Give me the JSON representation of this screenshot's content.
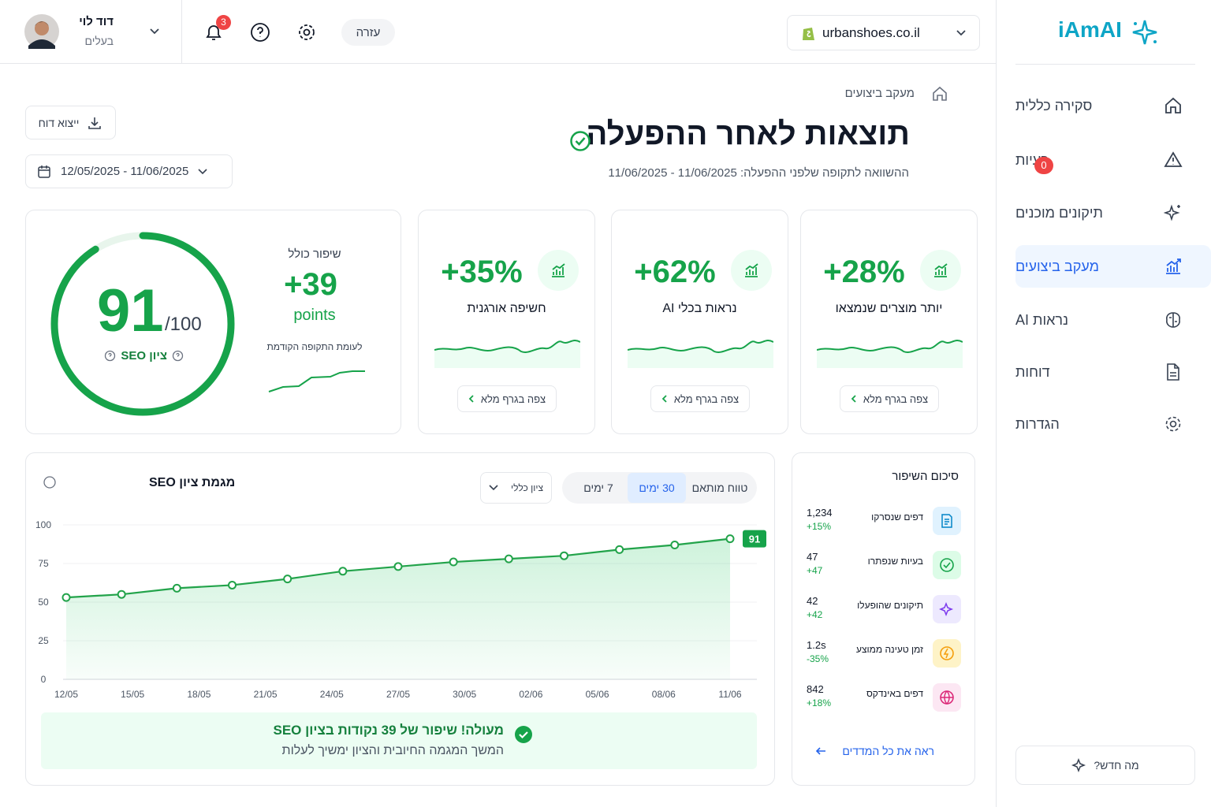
{
  "sidebar": {
    "logo": "iAmAI",
    "nav": [
      "סקירה כללית",
      "בעיות",
      "תיקונים מוכנים",
      "מעקב ביצועים",
      "נראות AI",
      "דוחות",
      "הגדרות"
    ],
    "issues_badge": "0",
    "whats_new": "מה חדש?"
  },
  "topbar": {
    "user_name": "דוד לוי",
    "user_role": "בעלים",
    "notifications": "3",
    "help": "עזרה",
    "store": "urbanshoes.co.il"
  },
  "header": {
    "breadcrumb": "מעקב ביצועים",
    "title": "תוצאות לאחר ההפעלה",
    "subtitle": "ההשוואה לתקופה שלפני ההפעלה: 11/06/2025 - 11/06/2025",
    "export": "ייצוא דוח",
    "date_range": "12/05/2025 - 11/06/2025"
  },
  "score_card": {
    "score": 91,
    "score_max": {
      "value": 100,
      "label": "/100"
    },
    "score_label": "ציון SEO",
    "improvement_label": "שיפור כולל",
    "improvement": "+39",
    "improvement_unit": "points",
    "compare": "לעומת התקופה הקודמת"
  },
  "metric_cards": [
    {
      "value": "+28%",
      "label": "יותר מוצרים שנמצאו",
      "button": "צפה בגרף מלא"
    },
    {
      "value": "+62%",
      "label": "נראות בכלי AI",
      "button": "צפה בגרף מלא"
    },
    {
      "value": "+35%",
      "label": "חשיפה אורגנית",
      "button": "צפה בגרף מלא"
    }
  ],
  "chart_controls": {
    "tabs": [
      "טווח מותאם",
      "30 ימים",
      "7 ימים"
    ],
    "select": "ציון כללי"
  },
  "chart_data": {
    "type": "line",
    "title": "מגמת ציון SEO",
    "x": [
      0,
      2.5,
      5,
      7.5,
      10,
      12.5,
      15,
      17.5,
      20,
      22.5,
      25,
      27.5,
      30
    ],
    "values": [
      53,
      55,
      59,
      61,
      65,
      70,
      73,
      76,
      78,
      80,
      84,
      87,
      91
    ],
    "color": "#22a34a",
    "xlim": [
      0,
      30
    ],
    "xticks": [
      {
        "value": 0,
        "label": "12/05"
      },
      {
        "value": 3,
        "label": "15/05"
      },
      {
        "value": 6,
        "label": "18/05"
      },
      {
        "value": 9,
        "label": "21/05"
      },
      {
        "value": 12,
        "label": "24/05"
      },
      {
        "value": 15,
        "label": "27/05"
      },
      {
        "value": 18,
        "label": "30/05"
      },
      {
        "value": 21,
        "label": "02/06"
      },
      {
        "value": 24,
        "label": "05/06"
      },
      {
        "value": 27,
        "label": "08/06"
      },
      {
        "value": 30,
        "label": "11/06"
      }
    ],
    "ylim": [
      0,
      100
    ],
    "yticks": [
      0,
      25,
      50,
      75,
      100
    ],
    "grid": true
  },
  "banner": {
    "title": "מעולה! שיפור של 39 נקודות בציון SEO",
    "text": "המשך המגמה החיובית והציון ימשיך לעלות"
  },
  "summary": {
    "title": "סיכום השיפור",
    "items": [
      {
        "label": "דפים שנסרקו",
        "value": "1,234",
        "change": "+15%"
      },
      {
        "label": "בעיות שנפתרו",
        "value": "47",
        "change": "+47"
      },
      {
        "label": "תיקונים שהופעלו",
        "value": "42",
        "change": "+42"
      },
      {
        "label": "זמן טעינה ממוצע",
        "value": "1.2s",
        "change": "-35%"
      },
      {
        "label": "דפים באינדקס",
        "value": "842",
        "change": "+18%"
      }
    ],
    "link": "ראה את כל המדדים"
  }
}
